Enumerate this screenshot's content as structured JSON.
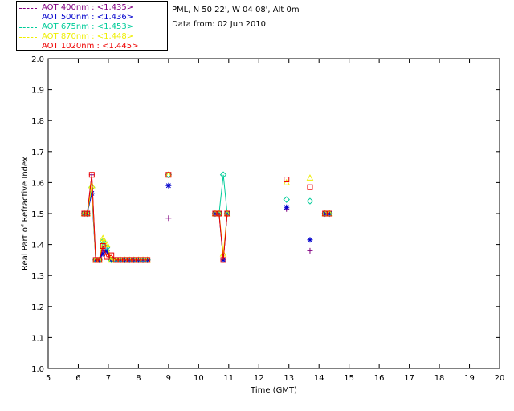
{
  "header": {
    "site": "PML, N 50 22', W 04 08', Alt 0m",
    "date": "Data from: 02 Jun 2010"
  },
  "chart_data": {
    "type": "line",
    "xlabel": "Time (GMT)",
    "ylabel": "Real Part of Refractive Index",
    "xlim": [
      5,
      20
    ],
    "ylim": [
      1.0,
      2.0
    ],
    "xticks": [
      "5",
      "6",
      "7",
      "8",
      "9",
      "10",
      "11",
      "12",
      "13",
      "14",
      "15",
      "16",
      "17",
      "18",
      "19",
      "20"
    ],
    "yticks": [
      "1.0",
      "1.1",
      "1.2",
      "1.3",
      "1.4",
      "1.5",
      "1.6",
      "1.7",
      "1.8",
      "1.9",
      "2.0"
    ],
    "grid": false,
    "legend_position": "top-left outside plot",
    "series": [
      {
        "name": "AOT  400nm : <1.435>",
        "color": "#800080",
        "marker": "plus",
        "lines": [
          [
            [
              6.2,
              1.5
            ],
            [
              6.3,
              1.5
            ],
            [
              6.45,
              1.625
            ],
            [
              6.58,
              1.35
            ],
            [
              6.7,
              1.35
            ],
            [
              6.82,
              1.38
            ],
            [
              6.95,
              1.375
            ],
            [
              7.1,
              1.35
            ],
            [
              7.25,
              1.35
            ],
            [
              7.4,
              1.35
            ],
            [
              7.55,
              1.35
            ],
            [
              7.7,
              1.35
            ],
            [
              7.85,
              1.35
            ],
            [
              8.0,
              1.35
            ],
            [
              8.15,
              1.35
            ],
            [
              8.3,
              1.35
            ]
          ],
          [
            [
              10.55,
              1.5
            ],
            [
              10.68,
              1.5
            ],
            [
              10.82,
              1.35
            ],
            [
              10.95,
              1.5
            ]
          ],
          [
            [
              14.2,
              1.5
            ],
            [
              14.35,
              1.5
            ]
          ]
        ],
        "points": [
          [
            9.0,
            1.485
          ],
          [
            12.92,
            1.515
          ],
          [
            13.7,
            1.38
          ]
        ]
      },
      {
        "name": "AOT  500nm : <1.436>",
        "color": "#0000cc",
        "marker": "asterisk",
        "lines": [
          [
            [
              6.2,
              1.5
            ],
            [
              6.3,
              1.5
            ],
            [
              6.45,
              1.565
            ],
            [
              6.58,
              1.35
            ],
            [
              6.7,
              1.35
            ],
            [
              6.82,
              1.37
            ],
            [
              6.95,
              1.38
            ],
            [
              7.1,
              1.35
            ],
            [
              7.25,
              1.35
            ],
            [
              7.4,
              1.35
            ],
            [
              7.55,
              1.35
            ],
            [
              7.7,
              1.35
            ],
            [
              7.85,
              1.35
            ],
            [
              8.0,
              1.35
            ],
            [
              8.15,
              1.35
            ],
            [
              8.3,
              1.35
            ]
          ],
          [
            [
              10.55,
              1.5
            ],
            [
              10.68,
              1.5
            ],
            [
              10.82,
              1.35
            ],
            [
              10.95,
              1.5
            ]
          ],
          [
            [
              14.2,
              1.5
            ],
            [
              14.35,
              1.5
            ]
          ]
        ],
        "points": [
          [
            9.0,
            1.59
          ],
          [
            12.92,
            1.52
          ],
          [
            13.7,
            1.415
          ]
        ]
      },
      {
        "name": "AOT  675nm : <1.453>",
        "color": "#00cc99",
        "marker": "diamond",
        "lines": [
          [
            [
              6.2,
              1.5
            ],
            [
              6.3,
              1.5
            ],
            [
              6.45,
              1.585
            ],
            [
              6.58,
              1.35
            ],
            [
              6.7,
              1.35
            ],
            [
              6.82,
              1.41
            ],
            [
              6.95,
              1.39
            ],
            [
              7.1,
              1.35
            ],
            [
              7.25,
              1.35
            ],
            [
              7.4,
              1.35
            ],
            [
              7.55,
              1.35
            ],
            [
              7.7,
              1.35
            ],
            [
              7.85,
              1.35
            ],
            [
              8.0,
              1.35
            ],
            [
              8.15,
              1.35
            ],
            [
              8.3,
              1.35
            ]
          ],
          [
            [
              10.55,
              1.5
            ],
            [
              10.68,
              1.5
            ],
            [
              10.82,
              1.625
            ],
            [
              10.95,
              1.5
            ]
          ],
          [
            [
              14.2,
              1.5
            ],
            [
              14.35,
              1.5
            ]
          ]
        ],
        "points": [
          [
            9.0,
            1.625
          ],
          [
            12.92,
            1.545
          ],
          [
            13.7,
            1.54
          ]
        ]
      },
      {
        "name": "AOT  870nm : <1.448>",
        "color": "#eeee00",
        "marker": "triangle",
        "lines": [
          [
            [
              6.2,
              1.5
            ],
            [
              6.3,
              1.5
            ],
            [
              6.45,
              1.59
            ],
            [
              6.58,
              1.35
            ],
            [
              6.7,
              1.35
            ],
            [
              6.82,
              1.42
            ],
            [
              6.95,
              1.4
            ],
            [
              7.1,
              1.35
            ],
            [
              7.25,
              1.35
            ],
            [
              7.4,
              1.35
            ],
            [
              7.55,
              1.35
            ],
            [
              7.7,
              1.35
            ],
            [
              7.85,
              1.35
            ],
            [
              8.0,
              1.35
            ],
            [
              8.15,
              1.35
            ],
            [
              8.3,
              1.35
            ]
          ],
          [
            [
              10.55,
              1.5
            ],
            [
              10.68,
              1.5
            ],
            [
              10.82,
              1.37
            ],
            [
              10.95,
              1.5
            ]
          ],
          [
            [
              14.2,
              1.5
            ],
            [
              14.35,
              1.5
            ]
          ]
        ],
        "points": [
          [
            9.0,
            1.625
          ],
          [
            12.92,
            1.6
          ],
          [
            13.7,
            1.615
          ]
        ]
      },
      {
        "name": "AOT 1020nm : <1.445>",
        "color": "#ee0000",
        "marker": "square",
        "lines": [
          [
            [
              6.2,
              1.5
            ],
            [
              6.3,
              1.5
            ],
            [
              6.45,
              1.625
            ],
            [
              6.58,
              1.35
            ],
            [
              6.7,
              1.35
            ],
            [
              6.82,
              1.395
            ],
            [
              6.95,
              1.36
            ],
            [
              7.1,
              1.365
            ],
            [
              7.25,
              1.35
            ],
            [
              7.4,
              1.35
            ],
            [
              7.55,
              1.35
            ],
            [
              7.7,
              1.35
            ],
            [
              7.85,
              1.35
            ],
            [
              8.0,
              1.35
            ],
            [
              8.15,
              1.35
            ],
            [
              8.3,
              1.35
            ]
          ],
          [
            [
              10.55,
              1.5
            ],
            [
              10.68,
              1.5
            ],
            [
              10.82,
              1.35
            ],
            [
              10.95,
              1.5
            ]
          ],
          [
            [
              14.2,
              1.5
            ],
            [
              14.35,
              1.5
            ]
          ]
        ],
        "points": [
          [
            9.0,
            1.625
          ],
          [
            12.92,
            1.61
          ],
          [
            13.7,
            1.585
          ]
        ]
      }
    ]
  }
}
